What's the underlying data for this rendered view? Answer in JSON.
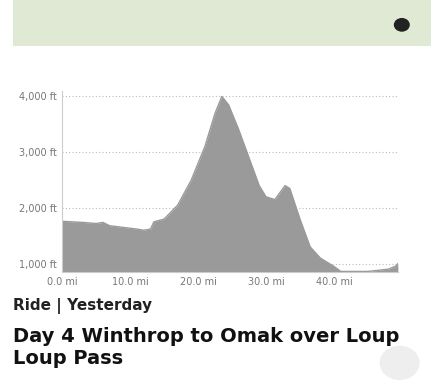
{
  "chart_data": {
    "type": "area",
    "title": "Day 4 Winthrop to Omak over Loup Loup Pass",
    "subtitle": "Ride | Yesterday",
    "x": [
      0,
      3,
      5,
      6,
      7,
      9,
      11,
      12,
      13,
      13.5,
      15,
      17,
      19,
      21,
      22.5,
      23.5,
      24.5,
      26,
      27.5,
      29,
      30,
      31.3,
      32.8,
      33.5,
      35,
      36.5,
      38,
      40,
      41,
      45,
      48,
      49,
      49.4
    ],
    "values": [
      1760,
      1740,
      1720,
      1740,
      1680,
      1650,
      1620,
      1600,
      1620,
      1750,
      1800,
      2050,
      2500,
      3100,
      3700,
      4000,
      3850,
      3400,
      2900,
      2400,
      2200,
      2150,
      2400,
      2350,
      1800,
      1300,
      1100,
      950,
      860,
      860,
      900,
      950,
      1000
    ],
    "color": "#9a9a9a",
    "xlim": [
      0,
      49.4
    ],
    "ylim": [
      850,
      4100
    ],
    "xticks": [
      {
        "value": 0,
        "label": "0.0 mi"
      },
      {
        "value": 10,
        "label": "10.0 mi"
      },
      {
        "value": 20,
        "label": "20.0 mi"
      },
      {
        "value": 30,
        "label": "30.0 mi"
      },
      {
        "value": 40,
        "label": "40.0 mi"
      }
    ],
    "yticks": [
      {
        "value": 1000,
        "label": "1,000 ft"
      },
      {
        "value": 2000,
        "label": "2,000 ft"
      },
      {
        "value": 3000,
        "label": "3,000 ft"
      },
      {
        "value": 4000,
        "label": "4,000 ft"
      }
    ],
    "grid": true
  }
}
